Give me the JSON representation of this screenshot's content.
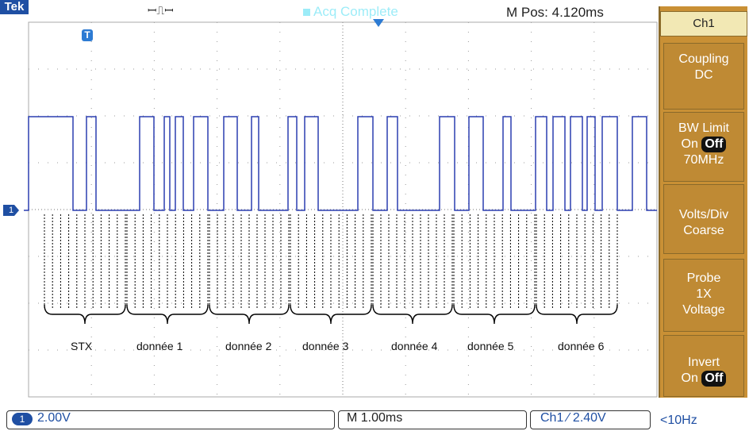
{
  "topbar": {
    "brand": "Tek",
    "trigger_status_glyph": "ꟷ⎍ꟷ",
    "acquisition_status": "Acq Complete",
    "main_position": "M Pos: 4.120ms"
  },
  "markers": {
    "trigger_point": "T",
    "channel_ground": "1"
  },
  "annotations": [
    {
      "label": "STX"
    },
    {
      "label": "donnée 1"
    },
    {
      "label": "donnée 2"
    },
    {
      "label": "donnée 3"
    },
    {
      "label": "donnée 4"
    },
    {
      "label": "donnée 5"
    },
    {
      "label": "donnée 6"
    }
  ],
  "side_menu": {
    "title": "Ch1",
    "coupling": {
      "label": "Coupling",
      "value": "DC"
    },
    "bw_limit": {
      "label": "BW Limit",
      "on": "On",
      "off": "Off",
      "value": "70MHz"
    },
    "volts_div": {
      "label": "Volts/Div",
      "value": "Coarse"
    },
    "probe": {
      "label": "Probe",
      "value": "1X",
      "mode": "Voltage"
    },
    "invert": {
      "label": "Invert",
      "on": "On",
      "off": "Off"
    }
  },
  "bottombar": {
    "channel_badge": "1",
    "volts": "2.00V",
    "timebase": "M 1.00ms",
    "trigger": "Ch1 ⁄ 2.40V",
    "frequency": "<10Hz"
  },
  "colors": {
    "trace": "#2b3fb0",
    "menu_bg": "#c99035",
    "accent": "#1f4fa3",
    "acq_text": "#25d6f0"
  }
}
